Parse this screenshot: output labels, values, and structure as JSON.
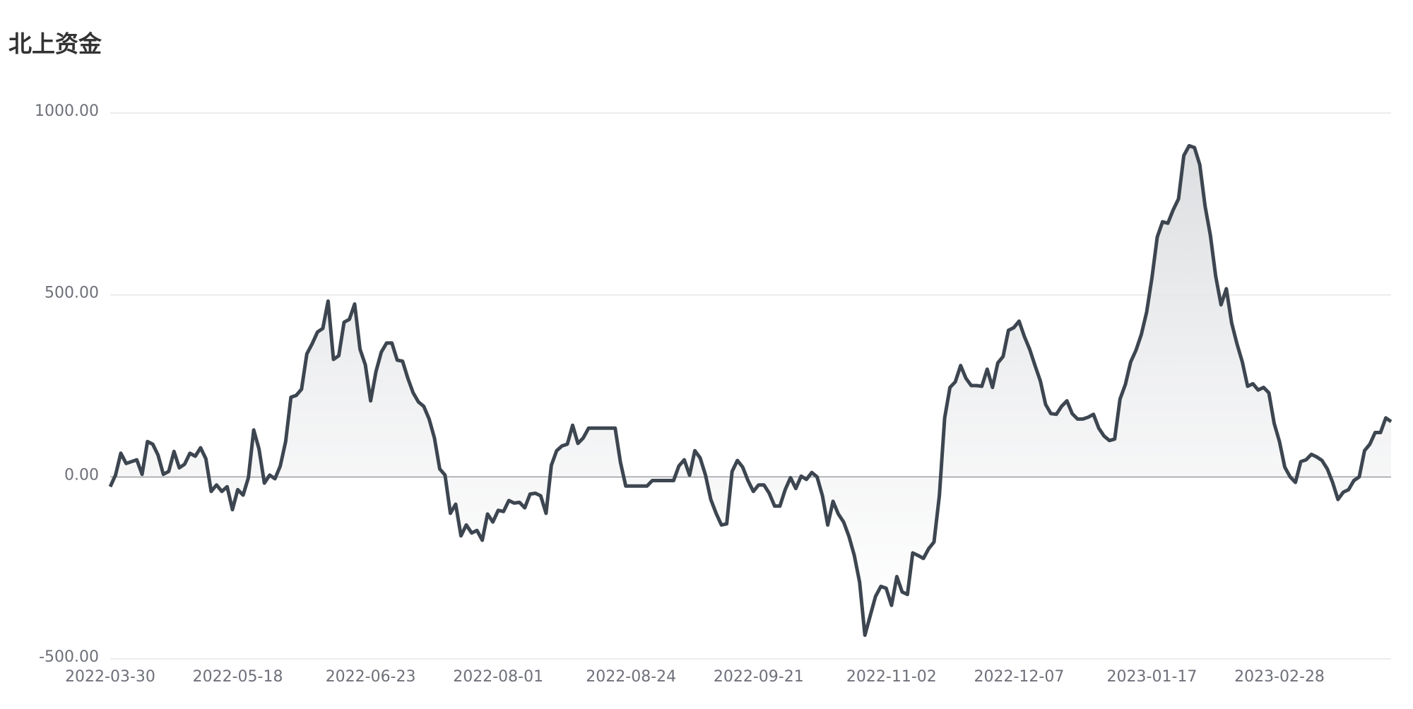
{
  "chart_data": {
    "type": "area",
    "title": "北上资金",
    "categories": [
      "2022-03-30",
      null,
      null,
      null,
      null,
      null,
      null,
      null,
      null,
      null,
      null,
      null,
      null,
      null,
      null,
      null,
      null,
      null,
      null,
      null,
      null,
      null,
      null,
      null,
      "2022-05-18",
      null,
      null,
      null,
      null,
      null,
      null,
      null,
      null,
      null,
      null,
      null,
      null,
      null,
      null,
      null,
      null,
      null,
      null,
      null,
      null,
      null,
      null,
      null,
      null,
      "2022-06-23",
      null,
      null,
      null,
      null,
      null,
      null,
      null,
      null,
      null,
      null,
      null,
      null,
      null,
      null,
      null,
      null,
      null,
      null,
      null,
      null,
      null,
      null,
      null,
      "2022-08-01",
      null,
      null,
      null,
      null,
      null,
      null,
      null,
      null,
      null,
      null,
      null,
      null,
      null,
      null,
      null,
      null,
      null,
      null,
      null,
      null,
      null,
      null,
      null,
      null,
      "2022-08-24",
      null,
      null,
      null,
      null,
      null,
      null,
      null,
      null,
      null,
      null,
      null,
      null,
      null,
      null,
      null,
      null,
      null,
      null,
      null,
      null,
      null,
      null,
      null,
      "2022-09-21",
      null,
      null,
      null,
      null,
      null,
      null,
      null,
      null,
      null,
      null,
      null,
      null,
      null,
      null,
      null,
      null,
      null,
      null,
      null,
      null,
      null,
      null,
      null,
      null,
      "2022-11-02",
      null,
      null,
      null,
      null,
      null,
      null,
      null,
      null,
      null,
      null,
      null,
      null,
      null,
      null,
      null,
      null,
      null,
      null,
      null,
      null,
      null,
      null,
      null,
      "2022-12-07",
      null,
      null,
      null,
      null,
      null,
      null,
      null,
      null,
      null,
      null,
      null,
      null,
      null,
      null,
      null,
      null,
      null,
      null,
      null,
      null,
      null,
      null,
      null,
      null,
      "2023-01-17",
      null,
      null,
      null,
      null,
      null,
      null,
      null,
      null,
      null,
      null,
      null,
      null,
      null,
      null,
      null,
      null,
      null,
      null,
      null,
      null,
      null,
      null,
      null,
      "2023-02-28",
      null,
      null,
      null,
      null,
      null,
      null,
      null,
      null,
      null,
      null,
      null,
      null,
      null,
      null,
      null,
      null,
      null,
      null,
      null,
      null,
      null
    ],
    "values": [
      -27,
      5,
      65,
      37,
      42,
      47,
      7,
      97,
      90,
      60,
      7,
      15,
      70,
      25,
      35,
      65,
      57,
      80,
      50,
      -40,
      -22,
      -40,
      -27,
      -90,
      -35,
      -50,
      -2,
      129,
      77,
      -17,
      5,
      -5,
      30,
      97,
      219,
      224,
      241,
      338,
      366,
      398,
      408,
      483,
      323,
      333,
      425,
      433,
      475,
      351,
      308,
      209,
      289,
      343,
      368,
      368,
      321,
      318,
      271,
      231,
      206,
      194,
      159,
      107,
      22,
      5,
      -100,
      -75,
      -162,
      -132,
      -154,
      -147,
      -174,
      -102,
      -124,
      -92,
      -95,
      -65,
      -72,
      -70,
      -85,
      -47,
      -45,
      -52,
      -100,
      32,
      72,
      85,
      90,
      142,
      92,
      107,
      134,
      134,
      134,
      134,
      134,
      134,
      40,
      -25,
      -25,
      -25,
      -25,
      -25,
      -10,
      -10,
      -10,
      -10,
      -10,
      30,
      47,
      5,
      72,
      52,
      5,
      -62,
      -100,
      -132,
      -129,
      15,
      45,
      27,
      -10,
      -40,
      -22,
      -22,
      -45,
      -80,
      -80,
      -35,
      -2,
      -32,
      2,
      -7,
      12,
      0,
      -52,
      -132,
      -67,
      -102,
      -124,
      -164,
      -216,
      -289,
      -435,
      -381,
      -328,
      -301,
      -306,
      -353,
      -274,
      -316,
      -323,
      -209,
      -216,
      -224,
      -197,
      -179,
      -52,
      162,
      246,
      261,
      306,
      271,
      251,
      251,
      249,
      296,
      246,
      313,
      331,
      403,
      410,
      428,
      386,
      351,
      306,
      264,
      199,
      174,
      172,
      194,
      209,
      174,
      159,
      159,
      164,
      172,
      134,
      112,
      100,
      104,
      214,
      254,
      316,
      348,
      391,
      453,
      547,
      659,
      701,
      697,
      734,
      764,
      883,
      910,
      905,
      858,
      744,
      664,
      552,
      473,
      517,
      423,
      366,
      316,
      249,
      256,
      239,
      246,
      231,
      147,
      97,
      27,
      0,
      -15,
      42,
      47,
      62,
      55,
      45,
      22,
      -15,
      -62,
      -42,
      -35,
      -10,
      0,
      72,
      90,
      122,
      122,
      162,
      152
    ],
    "color": "#3d4650",
    "ylim": [
      -500,
      1000
    ],
    "yticks": [
      {
        "value": -500,
        "label": "-500.00"
      },
      {
        "value": 0,
        "label": "0.00"
      },
      {
        "value": 500,
        "label": "500.00"
      },
      {
        "value": 1000,
        "label": "1000.00"
      }
    ],
    "grid": true
  }
}
